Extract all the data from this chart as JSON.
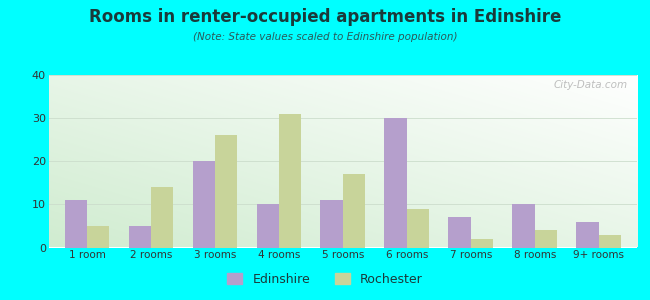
{
  "title": "Rooms in renter-occupied apartments in Edinshire",
  "subtitle": "(Note: State values scaled to Edinshire population)",
  "categories": [
    "1 room",
    "2 rooms",
    "3 rooms",
    "4 rooms",
    "5 rooms",
    "6 rooms",
    "7 rooms",
    "8 rooms",
    "9+ rooms"
  ],
  "edinshire_values": [
    11,
    5,
    20,
    10,
    11,
    30,
    7,
    10,
    6
  ],
  "rochester_values": [
    5,
    14,
    26,
    31,
    17,
    9,
    2,
    4,
    3
  ],
  "edinshire_color": "#b59fcc",
  "rochester_color": "#c8d49a",
  "ylim": [
    0,
    40
  ],
  "yticks": [
    0,
    10,
    20,
    30,
    40
  ],
  "background_color": "#00ffff",
  "bar_width": 0.35,
  "legend_edinshire": "Edinshire",
  "legend_rochester": "Rochester",
  "watermark": "City-Data.com",
  "title_color": "#1a3a3a",
  "subtitle_color": "#2a5a5a",
  "tick_color": "#333333",
  "grid_color": "#ccddcc"
}
